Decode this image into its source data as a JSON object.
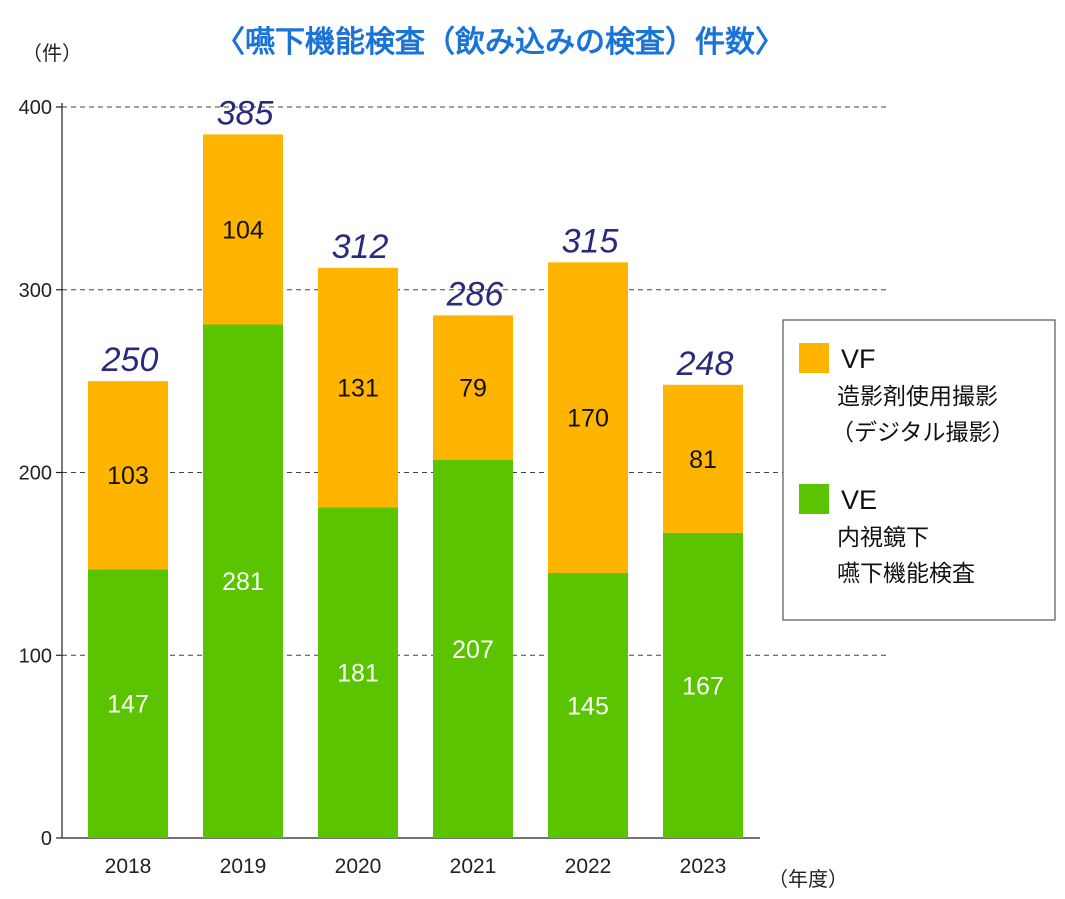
{
  "chart_data": {
    "type": "bar",
    "stacked": true,
    "title": "〈嚥下機能検査（飲み込みの検査）件数〉",
    "ylabel": "（件）",
    "xlabel": "（年度）",
    "ylim": [
      0,
      400
    ],
    "yticks": [
      0,
      100,
      200,
      300,
      400
    ],
    "grid": true,
    "legend_position": "right",
    "categories": [
      "2018",
      "2019",
      "2020",
      "2021",
      "2022",
      "2023"
    ],
    "series": [
      {
        "name": "VE",
        "description": [
          "内視鏡下",
          "嚥下機能検査"
        ],
        "color": "#5bc400",
        "values": [
          147,
          281,
          181,
          207,
          145,
          167
        ]
      },
      {
        "name": "VF",
        "description": [
          "造影剤使用撮影",
          "（デジタル撮影）"
        ],
        "color": "#ffb400",
        "values": [
          103,
          104,
          131,
          79,
          170,
          81
        ]
      }
    ],
    "totals": [
      250,
      385,
      312,
      286,
      315,
      248
    ]
  }
}
